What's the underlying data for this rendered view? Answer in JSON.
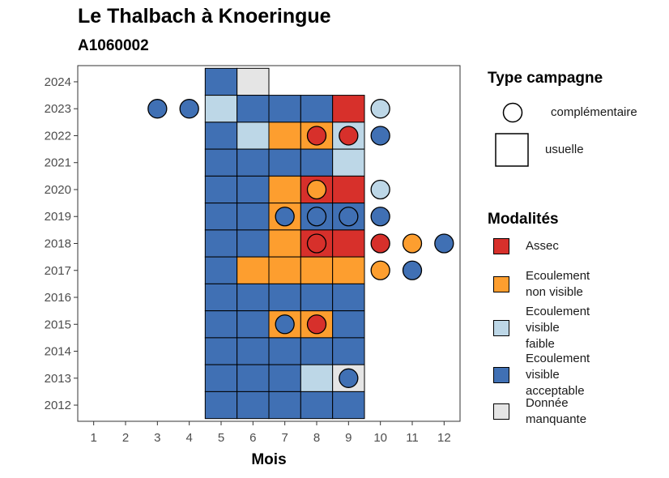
{
  "title": "Le Thalbach à Knoeringue",
  "subtitle": "A1060002",
  "colors": {
    "Assec": "#d7302b",
    "Ecoulement non visible": "#fd9e2f",
    "Ecoulement visible faible": "#bdd7e7",
    "Ecoulement visible acceptable": "#4070b4",
    "Donnée manquante": "#e5e5e5"
  },
  "legend_type": {
    "title": "Type campagne",
    "items": [
      {
        "label": "complémentaire",
        "shape": "circle"
      },
      {
        "label": "usuelle",
        "shape": "square"
      }
    ]
  },
  "legend_modalites": {
    "title": "Modalités",
    "items": [
      {
        "key": "Assec",
        "lines": [
          "Assec"
        ]
      },
      {
        "key": "Ecoulement non visible",
        "lines": [
          "Ecoulement",
          "non visible"
        ]
      },
      {
        "key": "Ecoulement visible faible",
        "lines": [
          "Ecoulement",
          "visible",
          "faible"
        ]
      },
      {
        "key": "Ecoulement visible acceptable",
        "lines": [
          "Ecoulement",
          "visible",
          "acceptable"
        ]
      },
      {
        "key": "Donnée manquante",
        "lines": [
          "Donnée",
          "manquante"
        ]
      }
    ]
  },
  "chart_data": {
    "type": "heatmap",
    "xlabel": "Mois",
    "ylabel": "",
    "x_ticks": [
      1,
      2,
      3,
      4,
      5,
      6,
      7,
      8,
      9,
      10,
      11,
      12
    ],
    "y_ticks": [
      2012,
      2013,
      2014,
      2015,
      2016,
      2017,
      2018,
      2019,
      2020,
      2021,
      2022,
      2023,
      2024
    ],
    "xlim": [
      0.5,
      12.5
    ],
    "ylim": [
      2011.4,
      2024.6
    ],
    "grid": false,
    "usuelle": [
      {
        "year": 2024,
        "months": [
          "Ecoulement visible acceptable",
          "Donnée manquante"
        ],
        "start": 5
      },
      {
        "year": 2023,
        "months": [
          "Ecoulement visible faible",
          "Ecoulement visible acceptable",
          "Ecoulement visible acceptable",
          "Ecoulement visible acceptable",
          "Assec"
        ],
        "start": 5
      },
      {
        "year": 2022,
        "months": [
          "Ecoulement visible acceptable",
          "Ecoulement visible faible",
          "Ecoulement non visible",
          "Ecoulement non visible",
          "Ecoulement visible faible"
        ],
        "start": 5
      },
      {
        "year": 2021,
        "months": [
          "Ecoulement visible acceptable",
          "Ecoulement visible acceptable",
          "Ecoulement visible acceptable",
          "Ecoulement visible acceptable",
          "Ecoulement visible faible"
        ],
        "start": 5
      },
      {
        "year": 2020,
        "months": [
          "Ecoulement visible acceptable",
          "Ecoulement visible acceptable",
          "Ecoulement non visible",
          "Assec",
          "Assec"
        ],
        "start": 5
      },
      {
        "year": 2019,
        "months": [
          "Ecoulement visible acceptable",
          "Ecoulement visible acceptable",
          "Ecoulement non visible",
          "Ecoulement visible acceptable",
          "Ecoulement visible acceptable"
        ],
        "start": 5
      },
      {
        "year": 2018,
        "months": [
          "Ecoulement visible acceptable",
          "Ecoulement visible acceptable",
          "Ecoulement non visible",
          "Assec",
          "Assec"
        ],
        "start": 5
      },
      {
        "year": 2017,
        "months": [
          "Ecoulement visible acceptable",
          "Ecoulement non visible",
          "Ecoulement non visible",
          "Ecoulement non visible",
          "Ecoulement non visible"
        ],
        "start": 5
      },
      {
        "year": 2016,
        "months": [
          "Ecoulement visible acceptable",
          "Ecoulement visible acceptable",
          "Ecoulement visible acceptable",
          "Ecoulement visible acceptable",
          "Ecoulement visible acceptable"
        ],
        "start": 5
      },
      {
        "year": 2015,
        "months": [
          "Ecoulement visible acceptable",
          "Ecoulement visible acceptable",
          "Ecoulement non visible",
          "Ecoulement non visible",
          "Ecoulement visible acceptable"
        ],
        "start": 5
      },
      {
        "year": 2014,
        "months": [
          "Ecoulement visible acceptable",
          "Ecoulement visible acceptable",
          "Ecoulement visible acceptable",
          "Ecoulement visible acceptable",
          "Ecoulement visible acceptable"
        ],
        "start": 5
      },
      {
        "year": 2013,
        "months": [
          "Ecoulement visible acceptable",
          "Ecoulement visible acceptable",
          "Ecoulement visible acceptable",
          "Ecoulement visible faible",
          "Donnée manquante"
        ],
        "start": 5
      },
      {
        "year": 2012,
        "months": [
          "Ecoulement visible acceptable",
          "Ecoulement visible acceptable",
          "Ecoulement visible acceptable",
          "Ecoulement visible acceptable",
          "Ecoulement visible acceptable"
        ],
        "start": 5
      }
    ],
    "complementaire": [
      {
        "year": 2023,
        "month": 3,
        "value": "Ecoulement visible acceptable"
      },
      {
        "year": 2023,
        "month": 4,
        "value": "Ecoulement visible acceptable"
      },
      {
        "year": 2023,
        "month": 10,
        "value": "Ecoulement visible faible"
      },
      {
        "year": 2022,
        "month": 8,
        "value": "Assec"
      },
      {
        "year": 2022,
        "month": 9,
        "value": "Assec"
      },
      {
        "year": 2022,
        "month": 10,
        "value": "Ecoulement visible acceptable"
      },
      {
        "year": 2020,
        "month": 8,
        "value": "Ecoulement non visible"
      },
      {
        "year": 2020,
        "month": 10,
        "value": "Ecoulement visible faible"
      },
      {
        "year": 2019,
        "month": 7,
        "value": "Ecoulement visible acceptable"
      },
      {
        "year": 2019,
        "month": 8,
        "value": "Ecoulement visible acceptable"
      },
      {
        "year": 2019,
        "month": 9,
        "value": "Ecoulement visible acceptable"
      },
      {
        "year": 2019,
        "month": 10,
        "value": "Ecoulement visible acceptable"
      },
      {
        "year": 2018,
        "month": 8,
        "value": "Assec"
      },
      {
        "year": 2018,
        "month": 10,
        "value": "Assec"
      },
      {
        "year": 2018,
        "month": 11,
        "value": "Ecoulement non visible"
      },
      {
        "year": 2018,
        "month": 12,
        "value": "Ecoulement visible acceptable"
      },
      {
        "year": 2017,
        "month": 10,
        "value": "Ecoulement non visible"
      },
      {
        "year": 2017,
        "month": 11,
        "value": "Ecoulement visible acceptable"
      },
      {
        "year": 2015,
        "month": 7,
        "value": "Ecoulement visible acceptable"
      },
      {
        "year": 2015,
        "month": 8,
        "value": "Assec"
      },
      {
        "year": 2013,
        "month": 9,
        "value": "Ecoulement visible acceptable"
      }
    ]
  }
}
